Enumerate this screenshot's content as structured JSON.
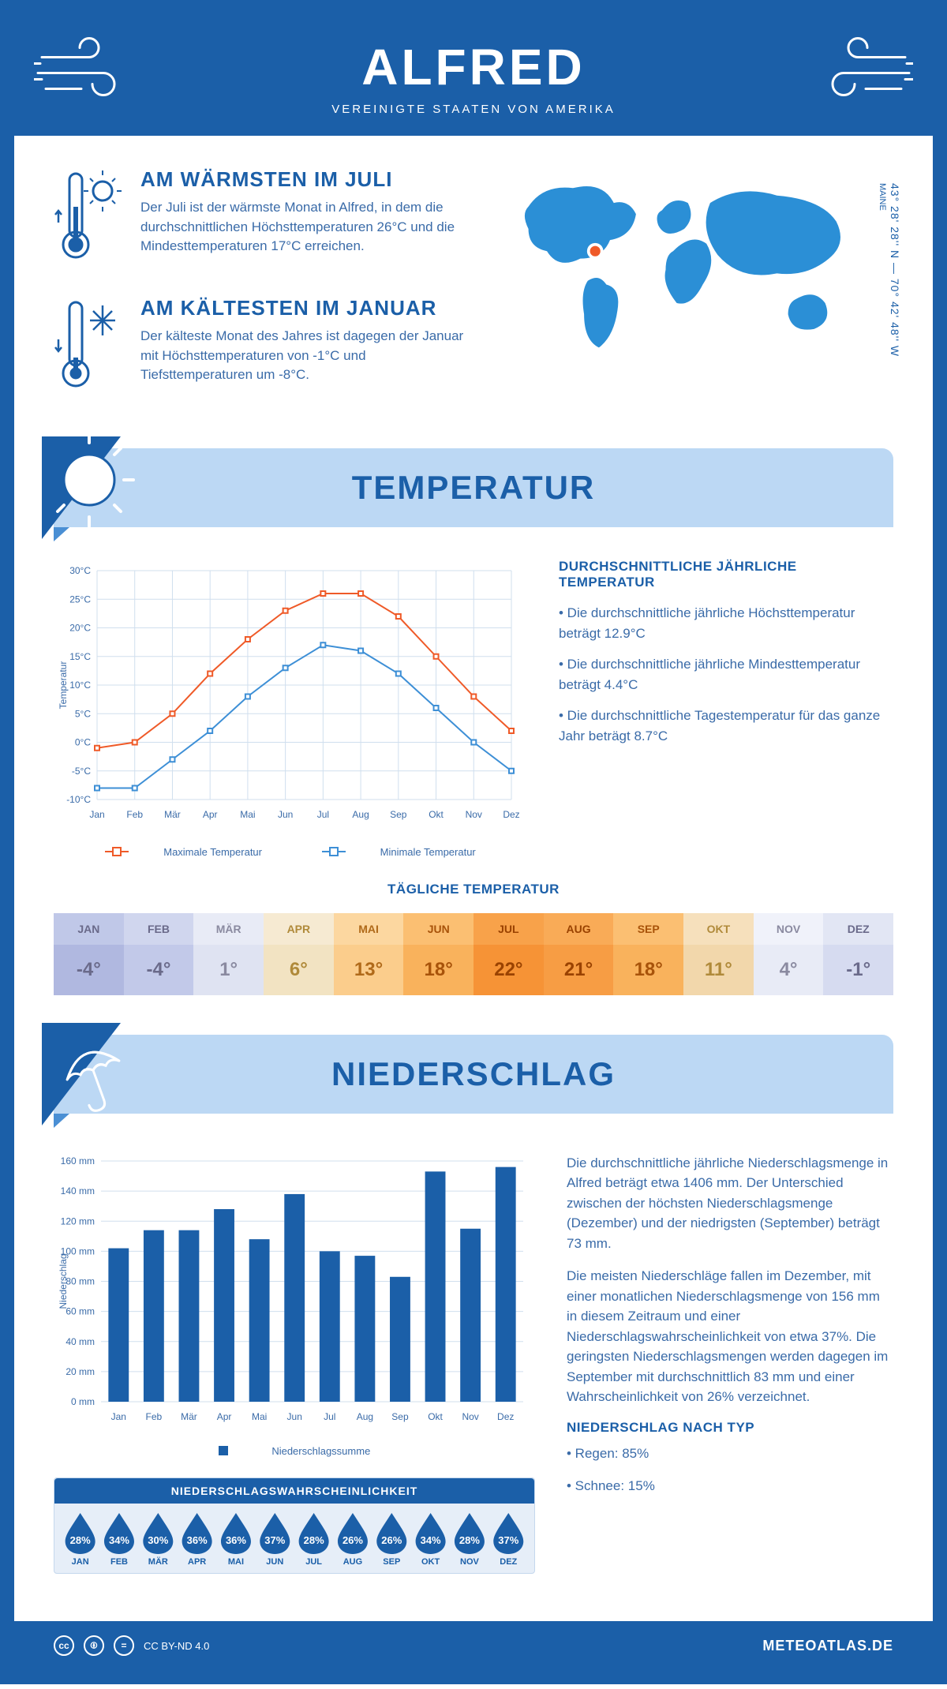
{
  "header": {
    "title": "ALFRED",
    "subtitle": "VEREINIGTE STAATEN VON AMERIKA"
  },
  "facts": {
    "warm": {
      "title": "AM WÄRMSTEN IM JULI",
      "text": "Der Juli ist der wärmste Monat in Alfred, in dem die durchschnittlichen Höchsttemperaturen 26°C und die Mindesttemperaturen 17°C erreichen."
    },
    "cold": {
      "title": "AM KÄLTESTEN IM JANUAR",
      "text": "Der kälteste Monat des Jahres ist dagegen der Januar mit Höchsttemperaturen von -1°C und Tiefsttemperaturen um -8°C."
    },
    "coords": "43° 28' 28'' N — 70° 42' 48'' W",
    "region": "MAINE"
  },
  "colors": {
    "brand": "#1b5fa8",
    "banner": "#bcd8f4",
    "accent_orange": "#ef5a28",
    "accent_blue": "#3d8fd6",
    "grid": "#d0dfee",
    "text": "#3a6ba8"
  },
  "temperature": {
    "section_title": "TEMPERATUR",
    "side_title": "DURCHSCHNITTLICHE JÄHRLICHE TEMPERATUR",
    "bullet1": "• Die durchschnittliche jährliche Höchsttemperatur beträgt 12.9°C",
    "bullet2": "• Die durchschnittliche jährliche Mindesttemperatur beträgt 4.4°C",
    "bullet3": "• Die durchschnittliche Tagestemperatur für das ganze Jahr beträgt 8.7°C",
    "chart": {
      "type": "line",
      "months": [
        "Jan",
        "Feb",
        "Mär",
        "Apr",
        "Mai",
        "Jun",
        "Jul",
        "Aug",
        "Sep",
        "Okt",
        "Nov",
        "Dez"
      ],
      "max_series": [
        -1,
        0,
        5,
        12,
        18,
        23,
        26,
        26,
        22,
        15,
        8,
        2
      ],
      "min_series": [
        -8,
        -8,
        -3,
        2,
        8,
        13,
        17,
        16,
        12,
        6,
        0,
        -5
      ],
      "max_color": "#ef5a28",
      "min_color": "#3d8fd6",
      "grid_color": "#d0dfee",
      "ylim": [
        -10,
        30
      ],
      "ytick_step": 5,
      "ylabel": "Temperatur",
      "legend_max": "Maximale Temperatur",
      "legend_min": "Minimale Temperatur",
      "line_width": 2,
      "marker": "square",
      "marker_size": 6,
      "background": "#ffffff"
    },
    "daily_title": "TÄGLICHE TEMPERATUR",
    "daily": {
      "months": [
        "JAN",
        "FEB",
        "MÄR",
        "APR",
        "MAI",
        "JUN",
        "JUL",
        "AUG",
        "SEP",
        "OKT",
        "NOV",
        "DEZ"
      ],
      "values": [
        "-4°",
        "-4°",
        "1°",
        "6°",
        "13°",
        "18°",
        "22°",
        "21°",
        "18°",
        "11°",
        "4°",
        "-1°"
      ],
      "header_colors": [
        "#c0c8e8",
        "#d0d6ee",
        "#e8ebf6",
        "#f6ead2",
        "#fcd7a0",
        "#fbbf72",
        "#f8a24a",
        "#f9ab57",
        "#fbbf72",
        "#f6e0bc",
        "#f0f2fa",
        "#e2e6f4"
      ],
      "value_colors": [
        "#b0b8e0",
        "#c2c9e9",
        "#dfe3f2",
        "#f2e3c2",
        "#fbcd8c",
        "#f9b25c",
        "#f69336",
        "#f79d44",
        "#f9b25c",
        "#f2d7ab",
        "#e8ebf6",
        "#d6dbf0"
      ],
      "text_colors": [
        "#6a6a8a",
        "#6a6a8a",
        "#8a8aa0",
        "#b08a3a",
        "#b06a1a",
        "#a8530a",
        "#9a4200",
        "#9a4200",
        "#a8530a",
        "#b08a3a",
        "#8a8aa0",
        "#6a6a8a"
      ]
    }
  },
  "precip": {
    "section_title": "NIEDERSCHLAG",
    "para1": "Die durchschnittliche jährliche Niederschlagsmenge in Alfred beträgt etwa 1406 mm. Der Unterschied zwischen der höchsten Niederschlagsmenge (Dezember) und der niedrigsten (September) beträgt 73 mm.",
    "para2": "Die meisten Niederschläge fallen im Dezember, mit einer monatlichen Niederschlagsmenge von 156 mm in diesem Zeitraum und einer Niederschlagswahrscheinlichkeit von etwa 37%. Die geringsten Niederschlagsmengen werden dagegen im September mit durchschnittlich 83 mm und einer Wahrscheinlichkeit von 26% verzeichnet.",
    "type_title": "NIEDERSCHLAG NACH TYP",
    "type1": "• Regen: 85%",
    "type2": "• Schnee: 15%",
    "chart": {
      "type": "bar",
      "months": [
        "Jan",
        "Feb",
        "Mär",
        "Apr",
        "Mai",
        "Jun",
        "Jul",
        "Aug",
        "Sep",
        "Okt",
        "Nov",
        "Dez"
      ],
      "values": [
        102,
        114,
        114,
        128,
        108,
        138,
        100,
        97,
        83,
        153,
        115,
        156
      ],
      "bar_color": "#1b5fa8",
      "grid_color": "#d0dfee",
      "ylim": [
        0,
        160
      ],
      "ytick_step": 20,
      "ylabel": "Niederschlag",
      "legend": "Niederschlagssumme",
      "bar_width": 0.58,
      "background": "#ffffff"
    },
    "prob_title": "NIEDERSCHLAGSWAHRSCHEINLICHKEIT",
    "prob": {
      "months": [
        "JAN",
        "FEB",
        "MÄR",
        "APR",
        "MAI",
        "JUN",
        "JUL",
        "AUG",
        "SEP",
        "OKT",
        "NOV",
        "DEZ"
      ],
      "values": [
        "28%",
        "34%",
        "30%",
        "36%",
        "36%",
        "37%",
        "28%",
        "26%",
        "26%",
        "34%",
        "28%",
        "37%"
      ]
    }
  },
  "footer": {
    "license": "CC BY-ND 4.0",
    "site": "METEOATLAS.DE"
  }
}
